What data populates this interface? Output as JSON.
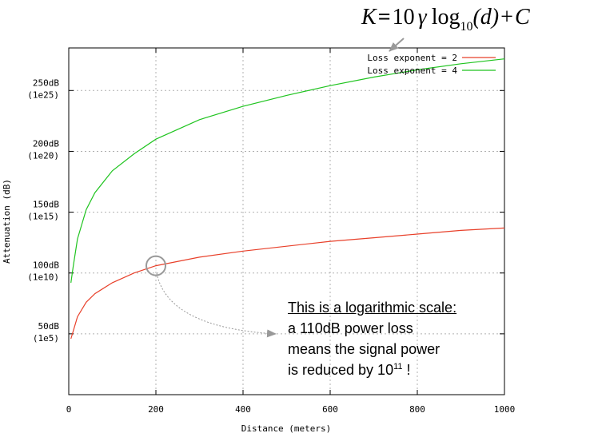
{
  "formula": {
    "lhs": "K",
    "eq": "=",
    "coef": "10",
    "gamma": "γ",
    "log": "log",
    "base": "10",
    "arg": "(d)",
    "plus": "+",
    "const": "C"
  },
  "annotation": {
    "title": "This is a logarithmic scale:",
    "line2": "a 110dB power loss",
    "line3": "means the signal power",
    "line4_prefix": "is reduced by 10",
    "line4_exp": "11",
    "line4_suffix": " !"
  },
  "chart_data": {
    "type": "line",
    "xlabel": "Distance (meters)",
    "ylabel": "Attenuation (dB)",
    "xlim": [
      0,
      1000
    ],
    "ylim": [
      0,
      285
    ],
    "grid": true,
    "legend_position": "top-right",
    "x_ticks": [
      {
        "value": 0,
        "label": "0"
      },
      {
        "value": 200,
        "label": "200"
      },
      {
        "value": 400,
        "label": "400"
      },
      {
        "value": 600,
        "label": "600"
      },
      {
        "value": 800,
        "label": "800"
      },
      {
        "value": 1000,
        "label": "1000"
      }
    ],
    "y_ticks": [
      {
        "value": 50,
        "label": "50dB",
        "sublabel": "(1e5)"
      },
      {
        "value": 100,
        "label": "100dB",
        "sublabel": "(1e10)"
      },
      {
        "value": 150,
        "label": "150dB",
        "sublabel": "(1e15)"
      },
      {
        "value": 200,
        "label": "200dB",
        "sublabel": "(1e20)"
      },
      {
        "value": 250,
        "label": "250dB",
        "sublabel": "(1e25)"
      }
    ],
    "series": [
      {
        "name": "Loss exponent = 2",
        "color": "#e8402a",
        "x": [
          5,
          10,
          20,
          40,
          60,
          100,
          150,
          200,
          300,
          400,
          500,
          600,
          700,
          800,
          900,
          1000
        ],
        "y": [
          46,
          52,
          64,
          76,
          83,
          92,
          100,
          106,
          113,
          118,
          122,
          126,
          129,
          132,
          135,
          137
        ]
      },
      {
        "name": "Loss exponent = 4",
        "color": "#1fc41f",
        "x": [
          5,
          10,
          20,
          40,
          60,
          100,
          150,
          200,
          300,
          400,
          500,
          600,
          700,
          800,
          900,
          1000
        ],
        "y": [
          92,
          105,
          128,
          152,
          166,
          184,
          198,
          210,
          226,
          237,
          246,
          254,
          261,
          267,
          272,
          276
        ]
      }
    ],
    "highlight_point": {
      "x": 200,
      "y": 106
    }
  },
  "colors": {
    "grid": "#b0b0b0",
    "axis": "#000000",
    "callout": "#888888"
  }
}
